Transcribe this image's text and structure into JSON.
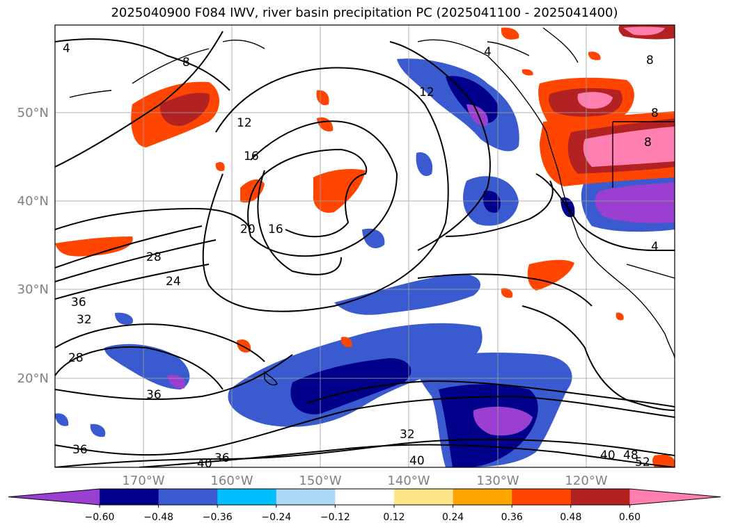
{
  "title": "2025040900 F084 IWV, river basin precipitation PC (2025041100 - 2025041400)",
  "map": {
    "lon_ticks": [
      "170°W",
      "160°W",
      "150°W",
      "140°W",
      "130°W",
      "120°W"
    ],
    "lat_ticks": [
      "50°N",
      "40°N",
      "30°N",
      "20°N"
    ],
    "gridlines": true
  },
  "contour_labels": [
    "4",
    "8",
    "12",
    "12",
    "16",
    "16",
    "20",
    "24",
    "28",
    "28",
    "32",
    "32",
    "36",
    "36",
    "36",
    "36",
    "40",
    "40",
    "40",
    "48",
    "52",
    "8",
    "8",
    "8",
    "4",
    "4"
  ],
  "colorbar": {
    "ticks": [
      "−0.60",
      "−0.48",
      "−0.36",
      "−0.24",
      "−0.12",
      "0.12",
      "0.24",
      "0.36",
      "0.48",
      "0.60"
    ],
    "colors": [
      "#9a3fcf",
      "#00008b",
      "#3a5bcf",
      "#00bfff",
      "#add8f7",
      "#ffffff",
      "#ffe58a",
      "#ffa500",
      "#ff4500",
      "#b22222",
      "#ff7fb0"
    ],
    "extend": "both"
  },
  "legend_colors": {
    "contour": "#000000",
    "grid": "#a0a0a0",
    "coast": "#000000"
  }
}
